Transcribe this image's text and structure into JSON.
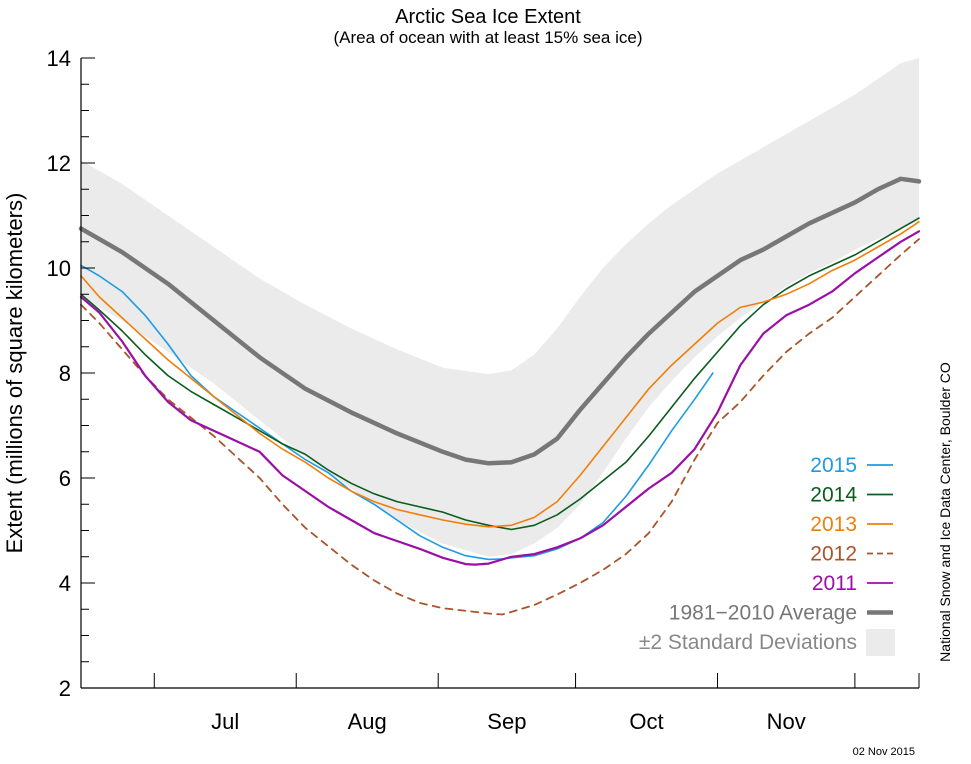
{
  "chart_data": {
    "type": "line",
    "title": "Arctic Sea Ice Extent",
    "subtitle": "(Area of ocean with at least 15% sea ice)",
    "ylabel": "Extent (millions of square kilometers)",
    "xlabel": "",
    "credit": "National Snow and Ice Data Center, Boulder CO",
    "date_stamp": "02 Nov 2015",
    "x_unit": "day of year",
    "xlim": [
      166,
      349
    ],
    "ylim": [
      2,
      14
    ],
    "yticks": [
      2,
      4,
      6,
      8,
      10,
      12,
      14
    ],
    "month_ticks": [
      166,
      182,
      213,
      244,
      274,
      305,
      335,
      349
    ],
    "month_labels": [
      {
        "label": "Jul",
        "x": 197.5
      },
      {
        "label": "Aug",
        "x": 228.5
      },
      {
        "label": "Sep",
        "x": 259
      },
      {
        "label": "Oct",
        "x": 289.5
      },
      {
        "label": "Nov",
        "x": 320
      }
    ],
    "std_band": {
      "name": "±2 Standard Deviations",
      "color": "#ebebeb",
      "x": [
        166,
        175,
        185,
        195,
        205,
        215,
        225,
        235,
        245,
        255,
        260,
        265,
        270,
        275,
        280,
        285,
        290,
        295,
        300,
        305,
        310,
        315,
        320,
        325,
        330,
        335,
        340,
        345,
        349
      ],
      "upper": [
        12.05,
        11.6,
        11.0,
        10.4,
        9.8,
        9.3,
        8.85,
        8.45,
        8.1,
        7.98,
        8.05,
        8.35,
        8.85,
        9.45,
        10.0,
        10.45,
        10.85,
        11.2,
        11.5,
        11.8,
        12.05,
        12.3,
        12.55,
        12.8,
        13.05,
        13.3,
        13.6,
        13.9,
        14.0
      ],
      "lower": [
        9.45,
        9.0,
        8.4,
        7.8,
        7.1,
        6.4,
        5.8,
        5.2,
        4.75,
        4.5,
        4.55,
        4.75,
        5.05,
        5.5,
        6.1,
        6.75,
        7.35,
        7.85,
        8.3,
        8.7,
        9.05,
        9.35,
        9.65,
        9.9,
        10.1,
        10.35,
        10.55,
        10.75,
        10.9
      ]
    },
    "series": [
      {
        "name": "1981−2010 Average",
        "color": "#777777",
        "width": 4.5,
        "dash": "",
        "x": [
          166,
          175,
          185,
          195,
          205,
          215,
          225,
          235,
          245,
          250,
          255,
          260,
          265,
          270,
          275,
          280,
          285,
          290,
          295,
          300,
          305,
          310,
          315,
          320,
          325,
          330,
          335,
          340,
          345,
          349
        ],
        "y": [
          10.75,
          10.3,
          9.7,
          9.0,
          8.3,
          7.7,
          7.25,
          6.85,
          6.5,
          6.35,
          6.28,
          6.3,
          6.45,
          6.75,
          7.3,
          7.8,
          8.3,
          8.75,
          9.15,
          9.55,
          9.85,
          10.15,
          10.35,
          10.6,
          10.85,
          11.05,
          11.25,
          11.5,
          11.7,
          11.65
        ]
      },
      {
        "name": "2015",
        "color": "#1b9ce5",
        "width": 1.6,
        "dash": "",
        "x": [
          166,
          168,
          170,
          175,
          180,
          185,
          190,
          195,
          200,
          205,
          210,
          215,
          220,
          225,
          230,
          235,
          240,
          245,
          250,
          255,
          258,
          260,
          265,
          270,
          275,
          280,
          285,
          290,
          295,
          300,
          304
        ],
        "y": [
          10.05,
          9.95,
          9.85,
          9.55,
          9.1,
          8.55,
          7.95,
          7.55,
          7.25,
          6.95,
          6.65,
          6.35,
          6.1,
          5.75,
          5.5,
          5.2,
          4.9,
          4.68,
          4.52,
          4.45,
          4.46,
          4.48,
          4.52,
          4.65,
          4.85,
          5.15,
          5.65,
          6.25,
          6.9,
          7.5,
          8.0
        ]
      },
      {
        "name": "2014",
        "color": "#0b5c1e",
        "width": 1.6,
        "dash": "",
        "x": [
          166,
          170,
          175,
          180,
          185,
          190,
          195,
          200,
          205,
          210,
          215,
          220,
          225,
          230,
          235,
          240,
          245,
          250,
          255,
          260,
          265,
          270,
          275,
          280,
          285,
          290,
          295,
          300,
          305,
          310,
          315,
          320,
          325,
          330,
          335,
          340,
          345,
          349
        ],
        "y": [
          9.5,
          9.2,
          8.8,
          8.35,
          7.95,
          7.65,
          7.4,
          7.15,
          6.9,
          6.65,
          6.45,
          6.15,
          5.9,
          5.7,
          5.55,
          5.45,
          5.35,
          5.2,
          5.1,
          5.02,
          5.1,
          5.3,
          5.6,
          5.95,
          6.3,
          6.8,
          7.35,
          7.9,
          8.4,
          8.9,
          9.3,
          9.6,
          9.85,
          10.05,
          10.25,
          10.5,
          10.75,
          10.95
        ]
      },
      {
        "name": "2013",
        "color": "#f07f0a",
        "width": 1.6,
        "dash": "",
        "x": [
          166,
          170,
          175,
          180,
          185,
          190,
          195,
          200,
          205,
          210,
          215,
          220,
          225,
          230,
          235,
          240,
          245,
          250,
          255,
          260,
          265,
          270,
          275,
          280,
          285,
          290,
          295,
          300,
          305,
          310,
          315,
          320,
          325,
          330,
          335,
          340,
          345,
          349
        ],
        "y": [
          9.85,
          9.45,
          9.05,
          8.65,
          8.25,
          7.9,
          7.55,
          7.2,
          6.85,
          6.55,
          6.3,
          6.0,
          5.75,
          5.55,
          5.4,
          5.3,
          5.2,
          5.12,
          5.07,
          5.1,
          5.25,
          5.55,
          6.05,
          6.6,
          7.15,
          7.7,
          8.15,
          8.55,
          8.95,
          9.25,
          9.35,
          9.5,
          9.7,
          9.95,
          10.15,
          10.4,
          10.65,
          10.88
        ]
      },
      {
        "name": "2012",
        "color": "#a9542a",
        "width": 1.8,
        "dash": "7,6",
        "x": [
          166,
          170,
          175,
          180,
          185,
          190,
          195,
          200,
          205,
          210,
          215,
          220,
          225,
          230,
          235,
          240,
          245,
          250,
          255,
          258,
          260,
          265,
          270,
          275,
          280,
          285,
          290,
          295,
          300,
          305,
          310,
          315,
          320,
          325,
          330,
          335,
          340,
          345,
          349
        ],
        "y": [
          9.3,
          8.95,
          8.45,
          7.95,
          7.5,
          7.15,
          6.8,
          6.4,
          6.0,
          5.5,
          5.05,
          4.7,
          4.35,
          4.05,
          3.8,
          3.62,
          3.52,
          3.47,
          3.42,
          3.4,
          3.45,
          3.58,
          3.78,
          4.0,
          4.25,
          4.55,
          4.95,
          5.55,
          6.35,
          7.05,
          7.45,
          7.95,
          8.4,
          8.75,
          9.05,
          9.45,
          9.85,
          10.25,
          10.55
        ]
      },
      {
        "name": "2011",
        "color": "#9a0fa6",
        "width": 2.2,
        "dash": "",
        "x": [
          166,
          170,
          175,
          180,
          185,
          190,
          195,
          200,
          205,
          210,
          215,
          220,
          225,
          230,
          235,
          240,
          245,
          250,
          252,
          255,
          260,
          265,
          270,
          275,
          280,
          285,
          290,
          295,
          300,
          305,
          310,
          315,
          320,
          325,
          330,
          335,
          340,
          345,
          349
        ],
        "y": [
          9.45,
          9.15,
          8.6,
          7.95,
          7.45,
          7.1,
          6.9,
          6.7,
          6.5,
          6.05,
          5.75,
          5.45,
          5.2,
          4.95,
          4.8,
          4.65,
          4.48,
          4.36,
          4.35,
          4.37,
          4.5,
          4.55,
          4.68,
          4.85,
          5.1,
          5.45,
          5.8,
          6.1,
          6.55,
          7.25,
          8.15,
          8.75,
          9.1,
          9.3,
          9.55,
          9.9,
          10.2,
          10.5,
          10.7
        ]
      }
    ],
    "legend": [
      {
        "label": "2015",
        "color": "#1b9ce5",
        "kind": "line",
        "dash": ""
      },
      {
        "label": "2014",
        "color": "#0b5c1e",
        "kind": "line",
        "dash": ""
      },
      {
        "label": "2013",
        "color": "#f07f0a",
        "kind": "line",
        "dash": ""
      },
      {
        "label": "2012",
        "color": "#a9542a",
        "kind": "line",
        "dash": "7,6"
      },
      {
        "label": "2011",
        "color": "#9a0fa6",
        "kind": "line",
        "dash": ""
      },
      {
        "label": "1981−2010 Average",
        "color": "#777777",
        "kind": "thick",
        "dash": ""
      },
      {
        "label": "±2 Standard Deviations",
        "color": "#888888",
        "kind": "band",
        "dash": ""
      }
    ],
    "legend_position": "bottom-right",
    "grid": false
  }
}
